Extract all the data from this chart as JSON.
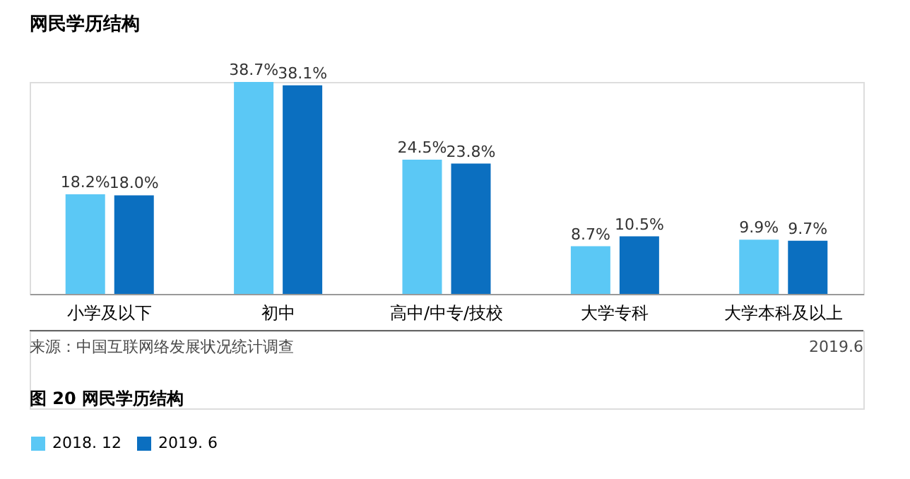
{
  "chart_data": {
    "type": "bar",
    "title": "网民学历结构",
    "categories": [
      "小学及以下",
      "初中",
      "高中/中专/技校",
      "大学专科",
      "大学本科及以上"
    ],
    "series": [
      {
        "name": "2018. 12",
        "color": "#5bc8f5",
        "values": [
          18.2,
          38.7,
          24.5,
          8.7,
          9.9
        ],
        "value_labels": [
          "18.2%",
          "38.7%",
          "24.5%",
          "8.7%",
          "9.9%"
        ]
      },
      {
        "name": "2019. 6",
        "color": "#0b6fc0",
        "values": [
          18.0,
          38.1,
          23.8,
          10.5,
          9.7
        ],
        "value_labels": [
          "18.0%",
          "38.1%",
          "23.8%",
          "10.5%",
          "9.7%"
        ]
      }
    ],
    "legend": "bottom",
    "grid": false,
    "annotations": [
      "来源：中国互联网络发展状况统计调查",
      "2019.6",
      "图 20   网民学历结构"
    ]
  }
}
